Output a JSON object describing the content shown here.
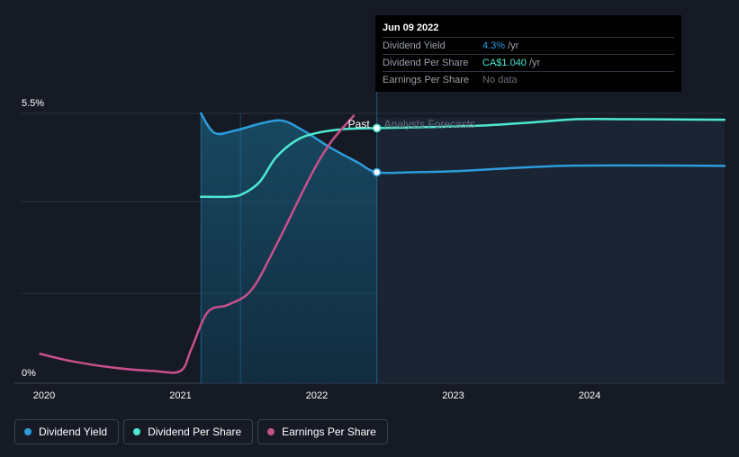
{
  "chart_data": {
    "type": "line",
    "y_axis_labels": {
      "top": "5.5%",
      "bottom": "0%"
    },
    "x_ticks": [
      "2020",
      "2021",
      "2022",
      "2023",
      "2024"
    ],
    "regions": {
      "past_label": "Past",
      "forecast_label": "Analysts Forecasts"
    },
    "series": [
      {
        "name": "Dividend Yield",
        "color": "#2d9cdb",
        "unit": "%",
        "points": [
          [
            2021.15,
            5.5
          ],
          [
            2021.25,
            5.1
          ],
          [
            2021.4,
            5.15
          ],
          [
            2021.6,
            5.3
          ],
          [
            2021.75,
            5.35
          ],
          [
            2021.9,
            5.15
          ],
          [
            2022.1,
            4.8
          ],
          [
            2022.3,
            4.5
          ],
          [
            2022.44,
            4.3
          ],
          [
            2022.7,
            4.3
          ],
          [
            2023.0,
            4.32
          ],
          [
            2023.4,
            4.38
          ],
          [
            2023.8,
            4.43
          ],
          [
            2024.2,
            4.44
          ],
          [
            2024.99,
            4.43
          ]
        ]
      },
      {
        "name": "Dividend Per Share",
        "color": "#4de8d0",
        "unit": "CA$",
        "points": [
          [
            2021.15,
            3.8
          ],
          [
            2021.35,
            3.8
          ],
          [
            2021.45,
            3.85
          ],
          [
            2021.58,
            4.1
          ],
          [
            2021.7,
            4.6
          ],
          [
            2021.85,
            4.95
          ],
          [
            2022.0,
            5.1
          ],
          [
            2022.2,
            5.18
          ],
          [
            2022.44,
            5.2
          ],
          [
            2022.8,
            5.22
          ],
          [
            2023.2,
            5.25
          ],
          [
            2023.6,
            5.32
          ],
          [
            2023.9,
            5.38
          ],
          [
            2024.3,
            5.38
          ],
          [
            2024.99,
            5.37
          ]
        ]
      },
      {
        "name": "Earnings Per Share",
        "color": "#c8508c",
        "unit": "CA$",
        "points": [
          [
            2019.97,
            0.6
          ],
          [
            2020.2,
            0.45
          ],
          [
            2020.5,
            0.32
          ],
          [
            2020.8,
            0.25
          ],
          [
            2021.0,
            0.25
          ],
          [
            2021.08,
            0.7
          ],
          [
            2021.2,
            1.45
          ],
          [
            2021.35,
            1.6
          ],
          [
            2021.52,
            1.9
          ],
          [
            2021.7,
            2.8
          ],
          [
            2021.95,
            4.2
          ],
          [
            2022.1,
            4.9
          ],
          [
            2022.27,
            5.45
          ]
        ]
      }
    ],
    "ylim": [
      0,
      5.5
    ],
    "xlim": [
      2019.8,
      2025.0
    ],
    "past_range": [
      2021.15,
      2022.44
    ],
    "highlight_range": [
      2021.44,
      2022.44
    ]
  },
  "tooltip": {
    "date": "Jun 09 2022",
    "rows": [
      {
        "name": "Dividend Yield",
        "value": "4.3%",
        "unit": "/yr"
      },
      {
        "name": "Dividend Per Share",
        "value": "CA$1.040",
        "unit": "/yr"
      },
      {
        "name": "Earnings Per Share",
        "value": "No data",
        "unit": ""
      }
    ]
  },
  "legend": [
    {
      "label": "Dividend Yield",
      "color": "#2d9cdb"
    },
    {
      "label": "Dividend Per Share",
      "color": "#4de8d0"
    },
    {
      "label": "Earnings Per Share",
      "color": "#c8508c"
    }
  ]
}
